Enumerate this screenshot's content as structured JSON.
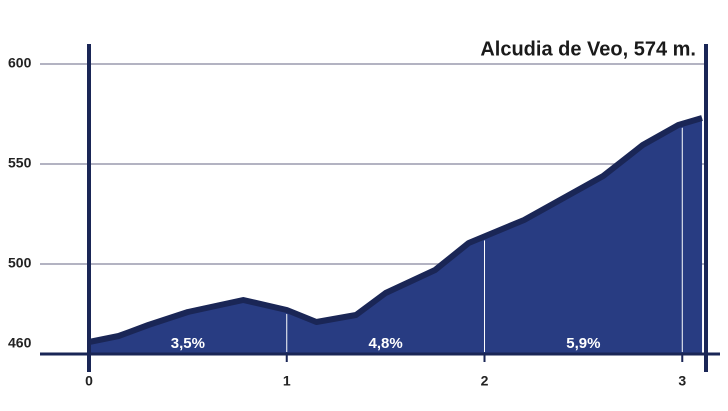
{
  "chart_data": {
    "type": "area",
    "title": "Alcudia de Veo, 574 m.",
    "x": [
      0,
      0.15,
      0.3,
      0.5,
      0.78,
      1.0,
      1.15,
      1.35,
      1.5,
      1.75,
      1.92,
      2.2,
      2.6,
      2.8,
      2.98,
      3.1
    ],
    "values": [
      461,
      464,
      469.5,
      476,
      482,
      477,
      471,
      474.5,
      485.5,
      497,
      510.5,
      522,
      544,
      559.5,
      569.5,
      573
    ],
    "color": "#283c82",
    "grade_labels": [
      "3,5%",
      "4,8%",
      "5,9%"
    ],
    "xlim": [
      0,
      3.12
    ],
    "xticks": [
      0,
      1,
      2,
      3
    ],
    "ylim": [
      455,
      610
    ],
    "yticks": [
      460,
      500,
      550,
      600
    ],
    "grid": true
  }
}
